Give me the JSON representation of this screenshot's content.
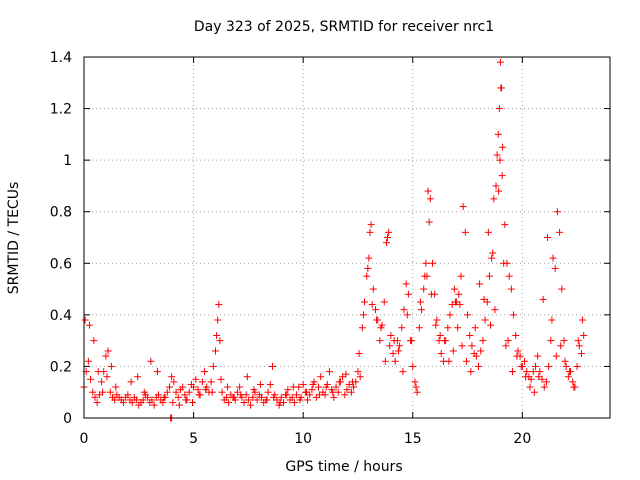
{
  "chart_data": {
    "type": "scatter",
    "title": "Day 323 of 2025, SRMTID for receiver nrc1",
    "xlabel": "GPS time / hours",
    "ylabel": "SRMTID / TECUs",
    "xlim": [
      0,
      24
    ],
    "ylim": [
      0,
      1.4
    ],
    "xticks": [
      "0",
      "5",
      "10",
      "15",
      "20"
    ],
    "yticks": [
      "0",
      "0.2",
      "0.4",
      "0.6",
      "0.8",
      "1",
      "1.2",
      "1.4"
    ],
    "grid": true,
    "marker": "plus",
    "color": "#ff0000",
    "series": [
      {
        "name": "SRMTID",
        "x": [
          0.0,
          0.1,
          0.2,
          0.3,
          0.4,
          0.5,
          0.6,
          0.7,
          0.8,
          0.9,
          1.0,
          1.1,
          1.2,
          1.3,
          1.4,
          1.5,
          1.6,
          1.7,
          1.8,
          1.9,
          2.0,
          2.1,
          2.2,
          2.3,
          2.4,
          2.5,
          2.6,
          2.7,
          2.8,
          2.9,
          3.0,
          3.1,
          3.2,
          3.3,
          3.4,
          3.5,
          3.6,
          3.7,
          3.8,
          3.9,
          4.0,
          4.1,
          4.2,
          4.3,
          4.4,
          4.5,
          4.6,
          4.7,
          4.8,
          4.9,
          5.0,
          5.1,
          5.2,
          5.3,
          5.4,
          5.5,
          5.6,
          5.7,
          5.8,
          5.9,
          6.0,
          6.05,
          6.1,
          6.15,
          6.2,
          6.3,
          6.4,
          6.5,
          6.6,
          6.7,
          6.8,
          6.9,
          7.0,
          7.1,
          7.2,
          7.3,
          7.4,
          7.5,
          7.6,
          7.7,
          7.8,
          7.9,
          8.0,
          8.1,
          8.2,
          8.3,
          8.4,
          8.5,
          8.6,
          8.7,
          8.8,
          8.9,
          9.0,
          9.1,
          9.2,
          9.3,
          9.4,
          9.5,
          9.6,
          9.7,
          9.8,
          9.9,
          10.0,
          10.1,
          10.2,
          10.3,
          10.4,
          10.5,
          10.6,
          10.7,
          10.8,
          10.9,
          11.0,
          11.1,
          11.2,
          11.3,
          11.4,
          11.5,
          11.6,
          11.7,
          11.8,
          11.9,
          12.0,
          12.1,
          12.2,
          12.3,
          12.4,
          12.5,
          12.6,
          12.7,
          12.8,
          12.9,
          13.0,
          13.05,
          13.1,
          13.2,
          13.3,
          13.4,
          13.5,
          13.6,
          13.7,
          13.8,
          13.9,
          14.0,
          14.1,
          14.2,
          14.3,
          14.4,
          14.5,
          14.6,
          14.7,
          14.8,
          14.9,
          15.0,
          15.1,
          15.2,
          15.3,
          15.4,
          15.5,
          15.55,
          15.6,
          15.7,
          15.8,
          15.9,
          16.0,
          16.1,
          16.2,
          16.3,
          16.4,
          16.5,
          16.6,
          16.7,
          16.8,
          16.9,
          17.0,
          17.1,
          17.2,
          17.3,
          17.4,
          17.5,
          17.6,
          17.7,
          17.8,
          17.9,
          18.0,
          18.1,
          18.2,
          18.3,
          18.4,
          18.5,
          18.6,
          18.7,
          18.8,
          18.85,
          18.9,
          18.95,
          19.0,
          19.05,
          19.1,
          19.2,
          19.3,
          19.4,
          19.5,
          19.6,
          19.7,
          19.8,
          19.9,
          20.0,
          20.1,
          20.2,
          20.3,
          20.4,
          20.5,
          20.6,
          20.7,
          20.8,
          20.9,
          21.0,
          21.1,
          21.2,
          21.3,
          21.4,
          21.5,
          21.6,
          21.7,
          21.8,
          21.9,
          22.0,
          22.1,
          22.2,
          22.3,
          22.4,
          22.5,
          22.6,
          22.7,
          22.8,
          0.05,
          0.25,
          0.45,
          0.65,
          0.85,
          1.05,
          1.25,
          1.45,
          2.15,
          2.45,
          2.75,
          3.05,
          3.35,
          3.65,
          4.05,
          4.35,
          4.65,
          4.95,
          5.25,
          5.55,
          5.85,
          6.25,
          6.55,
          6.85,
          7.15,
          7.45,
          7.75,
          8.05,
          8.35,
          8.65,
          8.95,
          9.25,
          9.55,
          9.85,
          10.15,
          10.45,
          10.75,
          11.05,
          11.35,
          11.65,
          11.95,
          12.25,
          12.55,
          12.75,
          12.95,
          13.15,
          13.35,
          13.55,
          13.75,
          13.95,
          14.15,
          14.35,
          14.55,
          14.75,
          14.95,
          15.15,
          15.35,
          15.65,
          15.85,
          16.05,
          16.25,
          16.45,
          16.65,
          16.85,
          17.05,
          17.25,
          17.45,
          17.65,
          17.85,
          18.05,
          18.25,
          18.45,
          18.65,
          18.75,
          19.15,
          19.35,
          19.55,
          19.75,
          19.95,
          20.15,
          20.35,
          20.55,
          20.75,
          20.95,
          21.15,
          21.35,
          21.55,
          21.75,
          21.95,
          22.15,
          22.35,
          22.55,
          22.75,
          16.95,
          17.15,
          18.55,
          19.25,
          13.85,
          15.75,
          19.02,
          18.98,
          19.08,
          18.92,
          3.95,
          4.0
        ],
        "y": [
          0.12,
          0.18,
          0.22,
          0.15,
          0.1,
          0.08,
          0.06,
          0.09,
          0.14,
          0.18,
          0.24,
          0.26,
          0.1,
          0.08,
          0.07,
          0.09,
          0.08,
          0.07,
          0.06,
          0.08,
          0.09,
          0.07,
          0.06,
          0.08,
          0.07,
          0.05,
          0.06,
          0.07,
          0.09,
          0.08,
          0.06,
          0.07,
          0.05,
          0.08,
          0.09,
          0.07,
          0.06,
          0.08,
          0.1,
          0.12,
          0.16,
          0.14,
          0.1,
          0.08,
          0.11,
          0.12,
          0.09,
          0.07,
          0.1,
          0.13,
          0.12,
          0.15,
          0.11,
          0.09,
          0.14,
          0.18,
          0.12,
          0.1,
          0.14,
          0.2,
          0.26,
          0.32,
          0.38,
          0.44,
          0.3,
          0.1,
          0.07,
          0.08,
          0.06,
          0.09,
          0.08,
          0.07,
          0.1,
          0.12,
          0.08,
          0.06,
          0.09,
          0.07,
          0.05,
          0.08,
          0.1,
          0.07,
          0.09,
          0.08,
          0.06,
          0.07,
          0.1,
          0.13,
          0.2,
          0.09,
          0.07,
          0.05,
          0.08,
          0.06,
          0.09,
          0.11,
          0.07,
          0.08,
          0.06,
          0.09,
          0.12,
          0.08,
          0.13,
          0.1,
          0.07,
          0.09,
          0.11,
          0.14,
          0.08,
          0.12,
          0.16,
          0.1,
          0.09,
          0.13,
          0.18,
          0.11,
          0.08,
          0.12,
          0.1,
          0.14,
          0.16,
          0.09,
          0.11,
          0.13,
          0.1,
          0.12,
          0.14,
          0.18,
          0.16,
          0.35,
          0.45,
          0.55,
          0.62,
          0.72,
          0.75,
          0.5,
          0.42,
          0.38,
          0.3,
          0.36,
          0.45,
          0.68,
          0.72,
          0.32,
          0.25,
          0.22,
          0.3,
          0.28,
          0.35,
          0.42,
          0.52,
          0.48,
          0.3,
          0.2,
          0.14,
          0.1,
          0.35,
          0.42,
          0.5,
          0.55,
          0.6,
          0.88,
          0.85,
          0.6,
          0.48,
          0.38,
          0.3,
          0.25,
          0.22,
          0.3,
          0.35,
          0.4,
          0.44,
          0.5,
          0.45,
          0.48,
          0.55,
          0.82,
          0.72,
          0.4,
          0.32,
          0.28,
          0.25,
          0.24,
          0.2,
          0.26,
          0.3,
          0.38,
          0.45,
          0.55,
          0.62,
          0.85,
          0.9,
          1.02,
          1.1,
          1.2,
          1.38,
          1.28,
          1.05,
          0.75,
          0.6,
          0.55,
          0.5,
          0.4,
          0.32,
          0.26,
          0.24,
          0.2,
          0.22,
          0.18,
          0.16,
          0.15,
          0.18,
          0.2,
          0.24,
          0.18,
          0.15,
          0.12,
          0.14,
          0.2,
          0.3,
          0.62,
          0.58,
          0.8,
          0.72,
          0.5,
          0.3,
          0.2,
          0.16,
          0.18,
          0.14,
          0.12,
          0.2,
          0.28,
          0.25,
          0.32,
          0.38,
          0.36,
          0.3,
          0.18,
          0.1,
          0.16,
          0.2,
          0.12,
          0.14,
          0.16,
          0.1,
          0.22,
          0.18,
          0.08,
          0.06,
          0.05,
          0.07,
          0.06,
          0.09,
          0.11,
          0.1,
          0.15,
          0.12,
          0.08,
          0.09,
          0.16,
          0.11,
          0.13,
          0.07,
          0.08,
          0.06,
          0.09,
          0.12,
          0.07,
          0.1,
          0.13,
          0.09,
          0.12,
          0.1,
          0.14,
          0.17,
          0.14,
          0.25,
          0.4,
          0.58,
          0.44,
          0.38,
          0.35,
          0.22,
          0.28,
          0.3,
          0.26,
          0.18,
          0.4,
          0.3,
          0.12,
          0.45,
          0.55,
          0.48,
          0.36,
          0.32,
          0.3,
          0.22,
          0.26,
          0.35,
          0.28,
          0.22,
          0.18,
          0.35,
          0.52,
          0.46,
          0.72,
          0.64,
          0.42,
          0.6,
          0.3,
          0.18,
          0.24,
          0.2,
          0.16,
          0.12,
          0.1,
          0.16,
          0.46,
          0.7,
          0.38,
          0.24,
          0.28,
          0.22,
          0.18,
          0.12,
          0.3,
          0.38,
          0.45,
          0.44,
          0.36,
          0.28,
          0.7,
          0.76,
          1.28,
          1.0,
          0.94,
          0.88,
          0.0,
          0.0
        ]
      }
    ]
  }
}
